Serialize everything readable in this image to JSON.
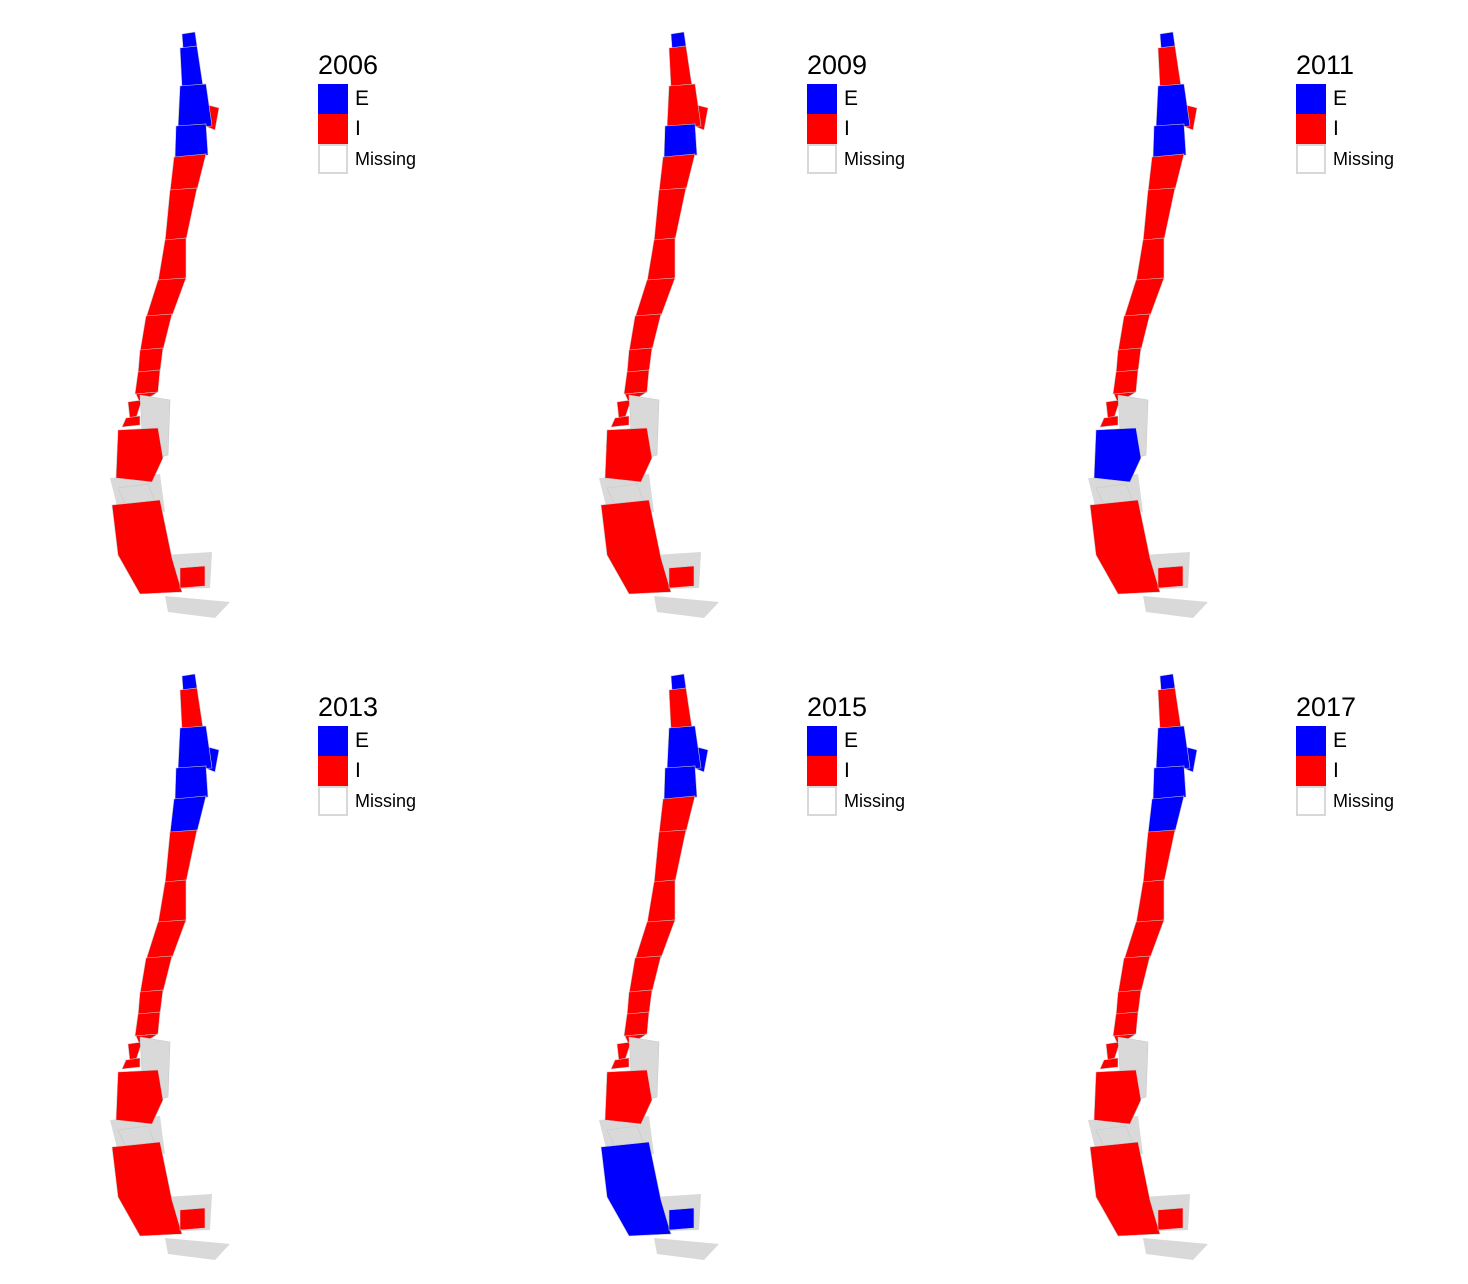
{
  "colors": {
    "E": "#0000ff",
    "I": "#ff0000",
    "missing": "#ffffff",
    "gray": "#d9d9d9"
  },
  "legend": {
    "labels": [
      "E",
      "I",
      "Missing"
    ]
  },
  "panels": [
    {
      "year": "2006",
      "regions": [
        "E",
        "E",
        "I",
        "E",
        "E",
        "I",
        "I",
        "I",
        "I",
        "I",
        "I",
        "I",
        "I",
        "I",
        "I",
        "M",
        "I",
        "M",
        "I",
        "I"
      ]
    },
    {
      "year": "2009",
      "regions": [
        "E",
        "I",
        "I",
        "I",
        "E",
        "I",
        "I",
        "I",
        "I",
        "I",
        "I",
        "I",
        "I",
        "I",
        "I",
        "M",
        "I",
        "M",
        "I",
        "I"
      ]
    },
    {
      "year": "2011",
      "regions": [
        "E",
        "I",
        "I",
        "E",
        "E",
        "I",
        "I",
        "I",
        "I",
        "I",
        "I",
        "I",
        "I",
        "I",
        "I",
        "M",
        "E",
        "M",
        "I",
        "I"
      ]
    },
    {
      "year": "2013",
      "regions": [
        "E",
        "I",
        "E",
        "E",
        "E",
        "E",
        "I",
        "I",
        "I",
        "I",
        "I",
        "I",
        "I",
        "I",
        "I",
        "M",
        "I",
        "M",
        "I",
        "I"
      ]
    },
    {
      "year": "2015",
      "regions": [
        "E",
        "I",
        "E",
        "E",
        "E",
        "I",
        "I",
        "I",
        "I",
        "I",
        "I",
        "I",
        "I",
        "I",
        "I",
        "M",
        "I",
        "M",
        "E",
        "E"
      ]
    },
    {
      "year": "2017",
      "regions": [
        "E",
        "I",
        "E",
        "E",
        "E",
        "E",
        "I",
        "I",
        "I",
        "I",
        "I",
        "I",
        "I",
        "I",
        "I",
        "M",
        "I",
        "M",
        "I",
        "I"
      ]
    }
  ]
}
